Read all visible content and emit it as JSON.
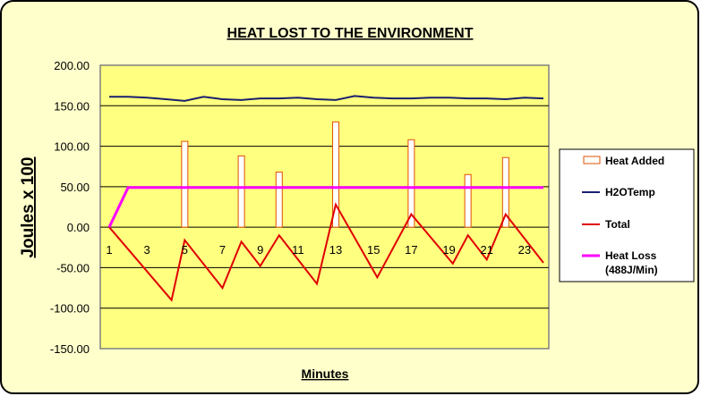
{
  "chart_data": {
    "type": "bar+line",
    "title": "HEAT LOST TO THE ENVIRONMENT",
    "xlabel": "Minutes",
    "ylabel": "Joules x 100",
    "ylim": [
      -150,
      200
    ],
    "yticks": [
      200,
      150,
      100,
      50,
      0,
      -50,
      -100,
      -150
    ],
    "ytick_labels": [
      "200.00",
      "150.00",
      "100.00",
      "50.00",
      "0.00",
      "-50.00",
      "-100.00",
      "-150.00"
    ],
    "xlim": [
      1,
      24
    ],
    "xtick_labels": [
      1,
      3,
      5,
      7,
      9,
      11,
      13,
      15,
      17,
      19,
      21,
      23
    ],
    "grid": true,
    "legend_position": "right",
    "series": [
      {
        "name": "Heat Added",
        "kind": "bar",
        "color": "#ff6a00",
        "points": [
          [
            5,
            106
          ],
          [
            8,
            88
          ],
          [
            10,
            68
          ],
          [
            13,
            130
          ],
          [
            17,
            108
          ],
          [
            20,
            65
          ],
          [
            22,
            86
          ]
        ]
      },
      {
        "name": "H2OTemp",
        "kind": "line",
        "color": "#1a1f6e",
        "x": [
          1,
          2,
          3,
          4,
          5,
          6,
          7,
          8,
          9,
          10,
          11,
          12,
          13,
          14,
          15,
          16,
          17,
          18,
          19,
          20,
          21,
          22,
          23,
          24
        ],
        "y": [
          161,
          161,
          160,
          158,
          156,
          161,
          158,
          157,
          159,
          159,
          160,
          158,
          157,
          162,
          160,
          159,
          159,
          160,
          160,
          159,
          159,
          158,
          160,
          159
        ]
      },
      {
        "name": "Total",
        "kind": "line",
        "color": "#e00000",
        "x": [
          1,
          4.3,
          5,
          7,
          8,
          9,
          10,
          12,
          13,
          15.2,
          17,
          19.2,
          20,
          21,
          22,
          24
        ],
        "y": [
          0,
          -90,
          -16,
          -75,
          -18,
          -48,
          -10,
          -70,
          28,
          -62,
          16,
          -45,
          -10,
          -40,
          16,
          -44
        ]
      },
      {
        "name": "Heat Loss",
        "name_line2": "(488J/Min)",
        "kind": "line",
        "color": "#ff00ff",
        "x": [
          1,
          2,
          24
        ],
        "y": [
          0,
          49,
          49
        ]
      }
    ]
  }
}
